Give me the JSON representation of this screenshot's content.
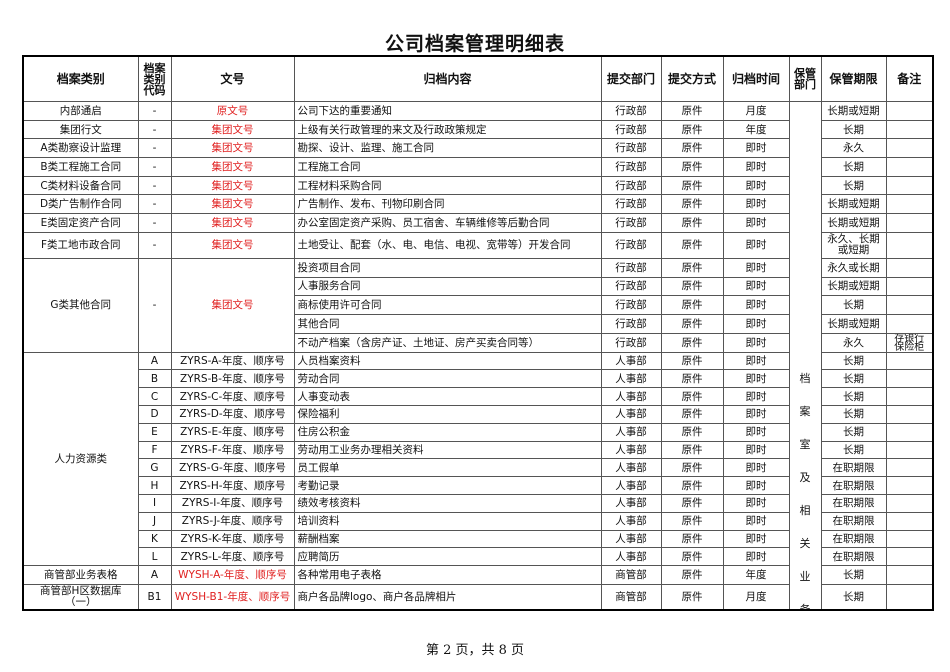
{
  "title": "公司档案管理明细表",
  "headers": [
    "档案类别",
    "档案类别代码",
    "文号",
    "归档内容",
    "提交部门",
    "提交方式",
    "归档时间",
    "保管部门",
    "保管期限",
    "备注"
  ],
  "keeper_text": [
    "档",
    "案",
    "室",
    "及",
    "相",
    "关",
    "业",
    "务"
  ],
  "groups": [
    {
      "category": "内部通启",
      "code": "-",
      "doc_no": "原文号",
      "red": true,
      "items": [
        {
          "content": "公司下达的重要通知",
          "dept": "行政部",
          "method": "原件",
          "time": "月度",
          "period": "长期或短期",
          "note": ""
        }
      ]
    },
    {
      "category": "集团行文",
      "code": "-",
      "doc_no": "集团文号",
      "red": true,
      "items": [
        {
          "content": "上级有关行政管理的来文及行政政策规定",
          "dept": "行政部",
          "method": "原件",
          "time": "年度",
          "period": "长期",
          "note": ""
        }
      ]
    },
    {
      "category": "A类勘察设计监理",
      "code": "-",
      "doc_no": "集团文号",
      "red": true,
      "items": [
        {
          "content": "勘探、设计、监理、施工合同",
          "dept": "行政部",
          "method": "原件",
          "time": "即时",
          "period": "永久",
          "note": ""
        }
      ]
    },
    {
      "category": "B类工程施工合同",
      "code": "-",
      "doc_no": "集团文号",
      "red": true,
      "items": [
        {
          "content": "工程施工合同",
          "dept": "行政部",
          "method": "原件",
          "time": "即时",
          "period": "长期",
          "note": ""
        }
      ]
    },
    {
      "category": "C类材料设备合同",
      "code": "-",
      "doc_no": "集团文号",
      "red": true,
      "items": [
        {
          "content": "工程材料采购合同",
          "dept": "行政部",
          "method": "原件",
          "time": "即时",
          "period": "长期",
          "note": ""
        }
      ]
    },
    {
      "category": "D类广告制作合同",
      "code": "-",
      "doc_no": "集团文号",
      "red": true,
      "items": [
        {
          "content": "广告制作、发布、刊物印刷合同",
          "dept": "行政部",
          "method": "原件",
          "time": "即时",
          "period": "长期或短期",
          "note": ""
        }
      ]
    },
    {
      "category": "E类固定资产合同",
      "code": "-",
      "doc_no": "集团文号",
      "red": true,
      "items": [
        {
          "content": "办公室固定资产采购、员工宿舍、车辆维修等后勤合同",
          "dept": "行政部",
          "method": "原件",
          "time": "即时",
          "period": "长期或短期",
          "note": ""
        }
      ]
    },
    {
      "category": "F类工地市政合同",
      "code": "-",
      "doc_no": "集团文号",
      "red": true,
      "tall": true,
      "items": [
        {
          "content": "土地受让、配套（水、电、电信、电视、宽带等）开发合同",
          "dept": "行政部",
          "method": "原件",
          "time": "即时",
          "period": "永久、长期或短期",
          "note": ""
        }
      ]
    },
    {
      "category": "G类其他合同",
      "code": "-",
      "doc_no": "集团文号",
      "red": true,
      "items": [
        {
          "content": "投资项目合同",
          "dept": "行政部",
          "method": "原件",
          "time": "即时",
          "period": "永久或长期",
          "note": ""
        },
        {
          "content": "人事服务合同",
          "dept": "行政部",
          "method": "原件",
          "time": "即时",
          "period": "长期或短期",
          "note": ""
        },
        {
          "content": "商标使用许可合同",
          "dept": "行政部",
          "method": "原件",
          "time": "即时",
          "period": "长期",
          "note": ""
        },
        {
          "content": "其他合同",
          "dept": "行政部",
          "method": "原件",
          "time": "即时",
          "period": "长期或短期",
          "note": ""
        },
        {
          "content": "不动产档案（含房产证、土地证、房产买卖合同等）",
          "dept": "行政部",
          "method": "原件",
          "time": "即时",
          "period": "永久",
          "note": "存银行保险柜"
        }
      ]
    },
    {
      "category": "人力资源类",
      "per_row_codes": true,
      "red": false,
      "items": [
        {
          "code": "A",
          "doc_no": "ZYRS-A-年度、顺序号",
          "content": "人员档案资料",
          "dept": "人事部",
          "method": "原件",
          "time": "即时",
          "period": "长期",
          "note": ""
        },
        {
          "code": "B",
          "doc_no": "ZYRS-B-年度、顺序号",
          "content": "劳动合同",
          "dept": "人事部",
          "method": "原件",
          "time": "即时",
          "period": "长期",
          "note": ""
        },
        {
          "code": "C",
          "doc_no": "ZYRS-C-年度、顺序号",
          "content": "人事变动表",
          "dept": "人事部",
          "method": "原件",
          "time": "即时",
          "period": "长期",
          "note": ""
        },
        {
          "code": "D",
          "doc_no": "ZYRS-D-年度、顺序号",
          "content": "保险福利",
          "dept": "人事部",
          "method": "原件",
          "time": "即时",
          "period": "长期",
          "note": ""
        },
        {
          "code": "E",
          "doc_no": "ZYRS-E-年度、顺序号",
          "content": "住房公积金",
          "dept": "人事部",
          "method": "原件",
          "time": "即时",
          "period": "长期",
          "note": ""
        },
        {
          "code": "F",
          "doc_no": "ZYRS-F-年度、顺序号",
          "content": "劳动用工业务办理相关资料",
          "dept": "人事部",
          "method": "原件",
          "time": "即时",
          "period": "长期",
          "note": ""
        },
        {
          "code": "G",
          "doc_no": "ZYRS-G-年度、顺序号",
          "content": "员工假单",
          "dept": "人事部",
          "method": "原件",
          "time": "即时",
          "period": "在职期限",
          "note": ""
        },
        {
          "code": "H",
          "doc_no": "ZYRS-H-年度、顺序号",
          "content": "考勤记录",
          "dept": "人事部",
          "method": "原件",
          "time": "即时",
          "period": "在职期限",
          "note": ""
        },
        {
          "code": "I",
          "doc_no": "ZYRS-I-年度、顺序号",
          "content": "绩效考核资料",
          "dept": "人事部",
          "method": "原件",
          "time": "即时",
          "period": "在职期限",
          "note": ""
        },
        {
          "code": "J",
          "doc_no": "ZYRS-J-年度、顺序号",
          "content": "培训资料",
          "dept": "人事部",
          "method": "原件",
          "time": "即时",
          "period": "在职期限",
          "note": ""
        },
        {
          "code": "K",
          "doc_no": "ZYRS-K-年度、顺序号",
          "content": "薪酬档案",
          "dept": "人事部",
          "method": "原件",
          "time": "即时",
          "period": "在职期限",
          "note": ""
        },
        {
          "code": "L",
          "doc_no": "ZYRS-L-年度、顺序号",
          "content": "应聘简历",
          "dept": "人事部",
          "method": "原件",
          "time": "即时",
          "period": "在职期限",
          "note": ""
        }
      ]
    },
    {
      "category": "商管部业务表格",
      "code": "A",
      "doc_no": "WYSH-A-年度、顺序号",
      "red": true,
      "items": [
        {
          "content": "各种常用电子表格",
          "dept": "商管部",
          "method": "原件",
          "time": "年度",
          "period": "长期",
          "note": ""
        }
      ]
    },
    {
      "category": "商管部H区数据库（一）",
      "code": "B1",
      "doc_no": "WYSH-B1-年度、顺序号",
      "red": true,
      "tall": true,
      "items": [
        {
          "content": "商户各品牌logo、商户各品牌相片",
          "dept": "商管部",
          "method": "原件",
          "time": "月度",
          "period": "长期",
          "note": ""
        }
      ]
    }
  ],
  "footer": "第 2 页，共 8 页"
}
